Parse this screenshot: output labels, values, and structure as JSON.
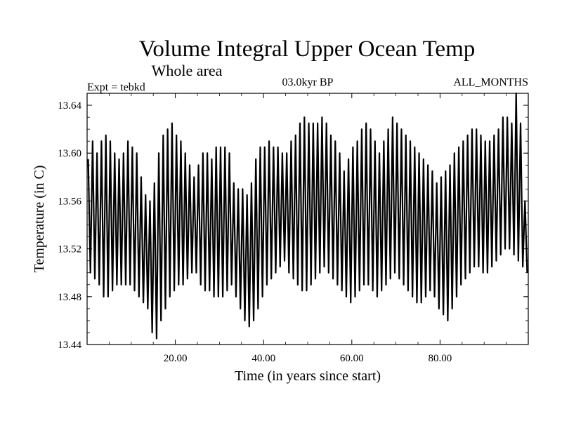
{
  "chart_data": {
    "type": "line",
    "title": "Volume Integral Upper Ocean Temp",
    "subtitle": "Whole area",
    "expt_label": "Expt = tebkd",
    "period_label": "03.0kyr BP",
    "months_label": "ALL_MONTHS",
    "xlabel": "Time (in years since start)",
    "ylabel": "Temperature (in C)",
    "xlim": [
      0,
      100
    ],
    "ylim": [
      13.44,
      13.65
    ],
    "x_ticks": [
      20,
      40,
      60,
      80
    ],
    "x_tick_labels": [
      "20.00",
      "40.00",
      "60.00",
      "80.00"
    ],
    "y_ticks": [
      13.44,
      13.48,
      13.52,
      13.56,
      13.6,
      13.64
    ],
    "y_tick_labels": [
      "13.44",
      "13.48",
      "13.52",
      "13.56",
      "13.60",
      "13.64"
    ],
    "series": [
      {
        "name": "Temperature",
        "description": "annual seasonal cycle, one max and one min per year",
        "yearly_max": [
          13.595,
          13.61,
          13.6,
          13.61,
          13.615,
          13.61,
          13.6,
          13.595,
          13.6,
          13.61,
          13.605,
          13.6,
          13.58,
          13.565,
          13.56,
          13.575,
          13.6,
          13.615,
          13.62,
          13.625,
          13.615,
          13.61,
          13.6,
          13.59,
          13.58,
          13.59,
          13.6,
          13.6,
          13.595,
          13.605,
          13.605,
          13.605,
          13.6,
          13.575,
          13.57,
          13.57,
          13.565,
          13.575,
          13.595,
          13.605,
          13.605,
          13.61,
          13.605,
          13.605,
          13.6,
          13.6,
          13.61,
          13.615,
          13.625,
          13.63,
          13.625,
          13.625,
          13.625,
          13.63,
          13.625,
          13.615,
          13.61,
          13.6,
          13.585,
          13.595,
          13.605,
          13.61,
          13.62,
          13.625,
          13.62,
          13.61,
          13.6,
          13.61,
          13.62,
          13.63,
          13.625,
          13.62,
          13.615,
          13.61,
          13.605,
          13.6,
          13.595,
          13.59,
          13.585,
          13.575,
          13.58,
          13.585,
          13.59,
          13.6,
          13.605,
          13.61,
          13.615,
          13.62,
          13.62,
          13.615,
          13.61,
          13.61,
          13.615,
          13.62,
          13.63,
          13.63,
          13.625,
          13.65,
          13.625,
          13.56
        ],
        "yearly_min": [
          13.5,
          13.495,
          13.49,
          13.48,
          13.48,
          13.485,
          13.49,
          13.49,
          13.49,
          13.49,
          13.485,
          13.48,
          13.475,
          13.47,
          13.45,
          13.445,
          13.46,
          13.47,
          13.48,
          13.485,
          13.49,
          13.49,
          13.495,
          13.5,
          13.5,
          13.49,
          13.485,
          13.485,
          13.48,
          13.48,
          13.48,
          13.485,
          13.49,
          13.48,
          13.47,
          13.46,
          13.455,
          13.46,
          13.47,
          13.48,
          13.49,
          13.495,
          13.5,
          13.505,
          13.51,
          13.5,
          13.495,
          13.49,
          13.485,
          13.485,
          13.49,
          13.495,
          13.5,
          13.505,
          13.5,
          13.495,
          13.49,
          13.485,
          13.48,
          13.475,
          13.48,
          13.485,
          13.49,
          13.49,
          13.485,
          13.48,
          13.485,
          13.49,
          13.495,
          13.5,
          13.495,
          13.49,
          13.485,
          13.48,
          13.475,
          13.475,
          13.48,
          13.485,
          13.48,
          13.47,
          13.465,
          13.46,
          13.47,
          13.48,
          13.49,
          13.495,
          13.5,
          13.505,
          13.505,
          13.5,
          13.5,
          13.505,
          13.51,
          13.515,
          13.52,
          13.52,
          13.515,
          13.51,
          13.505,
          13.5
        ]
      }
    ]
  }
}
